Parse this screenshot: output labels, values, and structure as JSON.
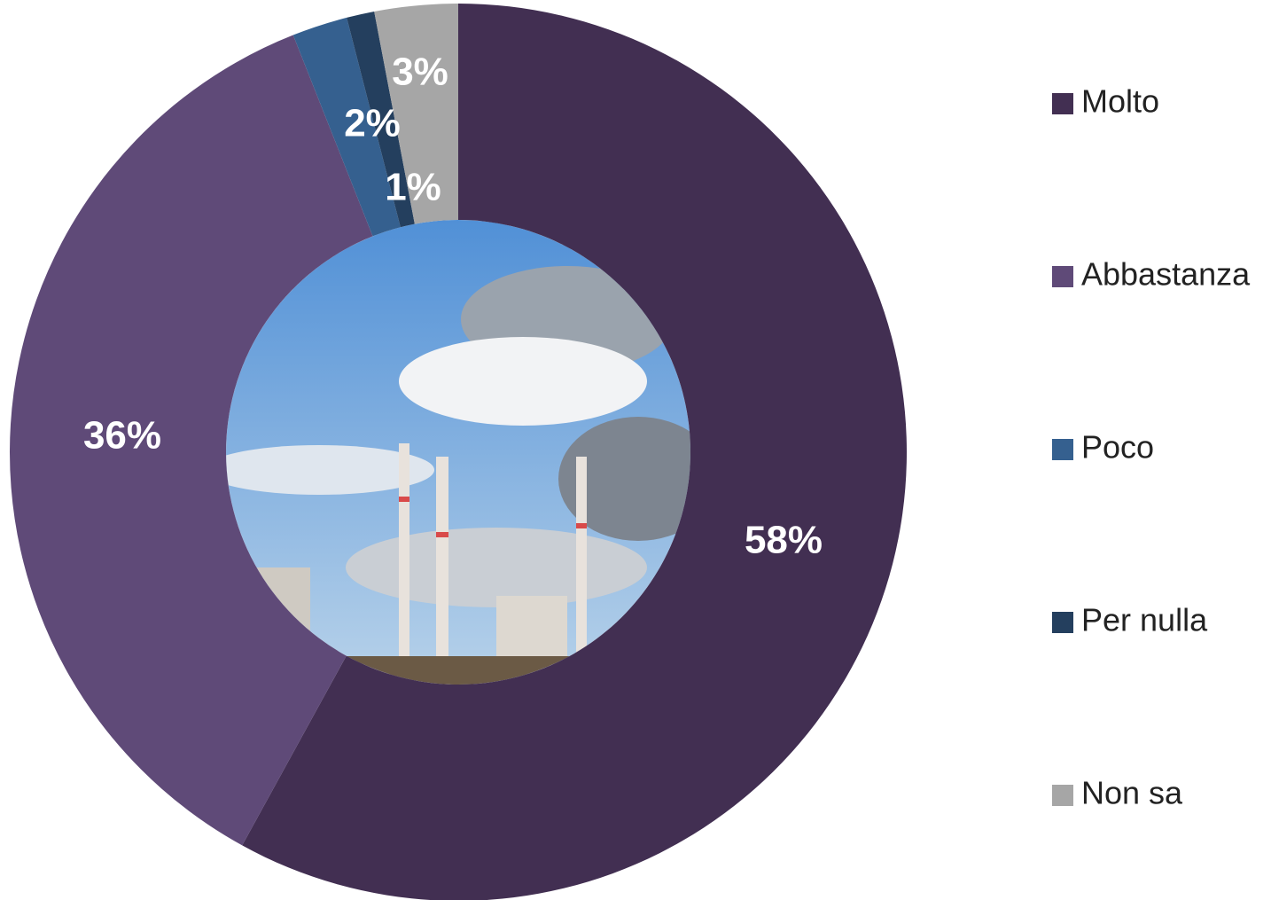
{
  "chart_data": {
    "type": "donut",
    "categories": [
      "Molto",
      "Abbastanza",
      "Poco",
      "Per nulla",
      "Non sa"
    ],
    "values": [
      58,
      36,
      2,
      1,
      3
    ],
    "value_labels": [
      "58%",
      "36%",
      "2%",
      "1%",
      "3%"
    ],
    "colors": [
      "#422f52",
      "#5f4a78",
      "#35608f",
      "#243f5e",
      "#a6a6a6"
    ],
    "legend": "right"
  }
}
